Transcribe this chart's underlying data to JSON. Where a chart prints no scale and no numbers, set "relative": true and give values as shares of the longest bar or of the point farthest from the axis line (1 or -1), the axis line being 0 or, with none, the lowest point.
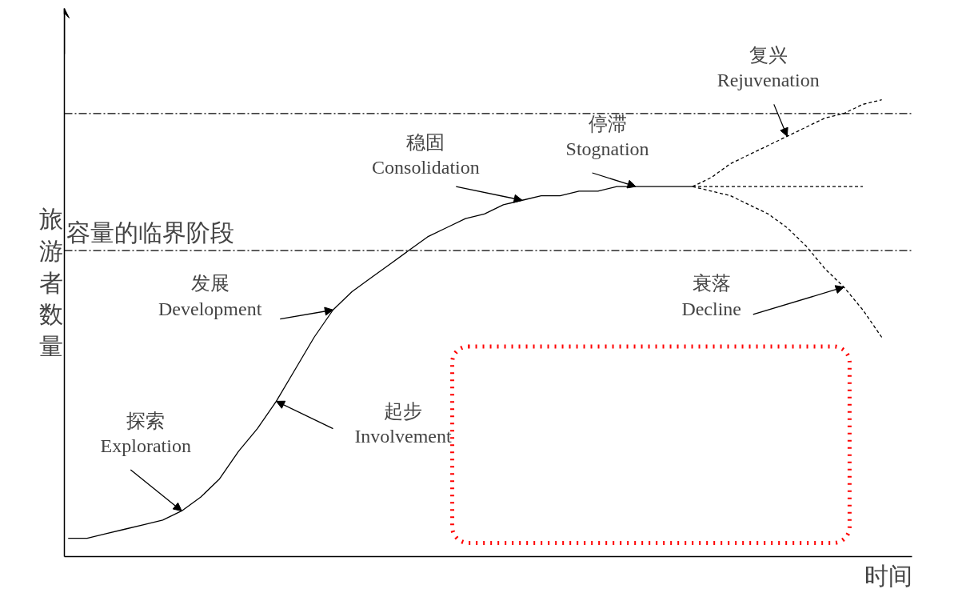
{
  "chart_data": {
    "type": "line",
    "relative": true,
    "ylabel": "旅游者数量",
    "xlabel": "时间",
    "marker": "none",
    "categories": [
      null,
      null,
      null,
      null,
      null,
      null,
      null,
      null,
      null,
      null,
      null,
      null,
      null,
      null,
      null,
      null,
      null,
      null,
      null,
      null,
      null,
      null,
      null,
      null,
      null,
      null,
      null,
      null,
      null,
      null,
      null,
      null,
      null,
      null,
      null,
      null,
      null,
      null,
      null,
      null,
      null,
      null,
      null,
      null
    ],
    "series": [
      {
        "color": "#000000",
        "line_style": "solid",
        "values": [
          0.04,
          0.04,
          0.05,
          0.06,
          0.07,
          0.08,
          0.1,
          0.13,
          0.17,
          0.23,
          0.28,
          0.34,
          0.41,
          0.48,
          0.54,
          0.58,
          0.61,
          0.64,
          0.67,
          0.7,
          0.72,
          0.74,
          0.75,
          0.77,
          0.78,
          0.79,
          0.79,
          0.8,
          0.8,
          0.81,
          0.81,
          0.81,
          0.81,
          0.81,
          null,
          null,
          null,
          null,
          null,
          null,
          null,
          null,
          null,
          null
        ]
      },
      {
        "color": "#000000",
        "line_style": "dashed",
        "values": [
          null,
          null,
          null,
          null,
          null,
          null,
          null,
          null,
          null,
          null,
          null,
          null,
          null,
          null,
          null,
          null,
          null,
          null,
          null,
          null,
          null,
          null,
          null,
          null,
          null,
          null,
          null,
          null,
          null,
          null,
          null,
          null,
          null,
          0.81,
          0.83,
          0.86,
          0.88,
          0.9,
          0.92,
          0.94,
          0.96,
          0.97,
          0.99,
          1
        ]
      },
      {
        "color": "#000000",
        "line_style": "dashed",
        "values": [
          null,
          null,
          null,
          null,
          null,
          null,
          null,
          null,
          null,
          null,
          null,
          null,
          null,
          null,
          null,
          null,
          null,
          null,
          null,
          null,
          null,
          null,
          null,
          null,
          null,
          null,
          null,
          null,
          null,
          null,
          null,
          null,
          null,
          0.81,
          0.81,
          0.81,
          0.81,
          0.81,
          0.81,
          0.81,
          0.81,
          0.81,
          0.81,
          null
        ]
      },
      {
        "color": "#000000",
        "line_style": "dashed",
        "values": [
          null,
          null,
          null,
          null,
          null,
          null,
          null,
          null,
          null,
          null,
          null,
          null,
          null,
          null,
          null,
          null,
          null,
          null,
          null,
          null,
          null,
          null,
          null,
          null,
          null,
          null,
          null,
          null,
          null,
          null,
          null,
          null,
          null,
          0.81,
          0.8,
          0.79,
          0.77,
          0.75,
          0.72,
          0.68,
          0.63,
          0.59,
          0.54,
          0.48
        ]
      }
    ],
    "ref_lines": [
      {
        "axis": "y",
        "value": 0.97,
        "label": null,
        "color": "#000000",
        "line_style": "dashdot"
      },
      {
        "axis": "y",
        "value": 0.67,
        "label": "容量的临界阶段",
        "color": "#000000",
        "line_style": "dashdot"
      }
    ],
    "annotations": [
      "探索\nExploration",
      "起步\nInvolvement",
      "发展\nDevelopment",
      "稳固\nConsolidation",
      "停滞\nStognation",
      "复兴\nRejuvenation",
      "衰落\nDecline"
    ]
  }
}
